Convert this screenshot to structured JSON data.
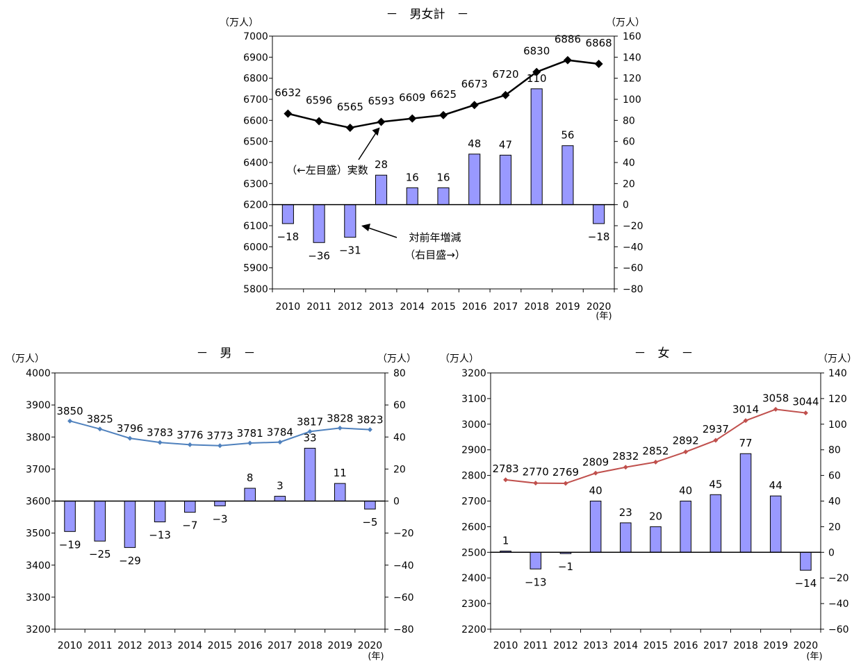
{
  "chart_data": [
    {
      "id": "total",
      "type": "bar+line",
      "title": "－　男女計　－",
      "left_unit": "（万人）",
      "right_unit": "（万人）",
      "x_unit": "(年)",
      "categories": [
        "2010",
        "2011",
        "2012",
        "2013",
        "2014",
        "2015",
        "2016",
        "2017",
        "2018",
        "2019",
        "2020"
      ],
      "left_axis": {
        "min": 5800,
        "max": 7000,
        "step": 100
      },
      "right_axis": {
        "min": -80,
        "max": 160,
        "step": 20
      },
      "line": {
        "name": "実数",
        "values": [
          6632,
          6596,
          6565,
          6593,
          6609,
          6625,
          6673,
          6720,
          6830,
          6886,
          6868
        ],
        "color": "#000000",
        "marker": "diamond"
      },
      "bars": {
        "name": "対前年増減",
        "values": [
          -18,
          -36,
          -31,
          28,
          16,
          16,
          48,
          47,
          110,
          56,
          -18
        ],
        "color": "#9999FF"
      },
      "annotations": [
        {
          "text": "（←左目盛）実数"
        },
        {
          "lines": [
            "対前年増減",
            "（右目盛→）"
          ]
        }
      ]
    },
    {
      "id": "male",
      "type": "bar+line",
      "title": "－　男　－",
      "left_unit": "（万人）",
      "right_unit": "（万人）",
      "x_unit": "(年)",
      "categories": [
        "2010",
        "2011",
        "2012",
        "2013",
        "2014",
        "2015",
        "2016",
        "2017",
        "2018",
        "2019",
        "2020"
      ],
      "left_axis": {
        "min": 3200,
        "max": 4000,
        "step": 100
      },
      "right_axis": {
        "min": -80,
        "max": 80,
        "step": 20
      },
      "line": {
        "values": [
          3850,
          3825,
          3796,
          3783,
          3776,
          3773,
          3781,
          3784,
          3817,
          3828,
          3823
        ],
        "color": "#4F81BD",
        "marker": "diamond"
      },
      "bars": {
        "values": [
          -19,
          -25,
          -29,
          -13,
          -7,
          -3,
          8,
          3,
          33,
          11,
          -5
        ],
        "color": "#9999FF"
      }
    },
    {
      "id": "female",
      "type": "bar+line",
      "title": "－　女　－",
      "left_unit": "（万人）",
      "right_unit": "（万人）",
      "x_unit": "(年)",
      "categories": [
        "2010",
        "2011",
        "2012",
        "2013",
        "2014",
        "2015",
        "2016",
        "2017",
        "2018",
        "2019",
        "2020"
      ],
      "left_axis": {
        "min": 2200,
        "max": 3200,
        "step": 100
      },
      "right_axis": {
        "min": -60,
        "max": 140,
        "step": 20
      },
      "line": {
        "values": [
          2783,
          2770,
          2769,
          2809,
          2832,
          2852,
          2892,
          2937,
          3014,
          3058,
          3044
        ],
        "color": "#C0504D",
        "marker": "diamond"
      },
      "bars": {
        "values": [
          1,
          -13,
          -1,
          40,
          23,
          20,
          40,
          45,
          77,
          44,
          -14
        ],
        "color": "#9999FF"
      }
    }
  ]
}
